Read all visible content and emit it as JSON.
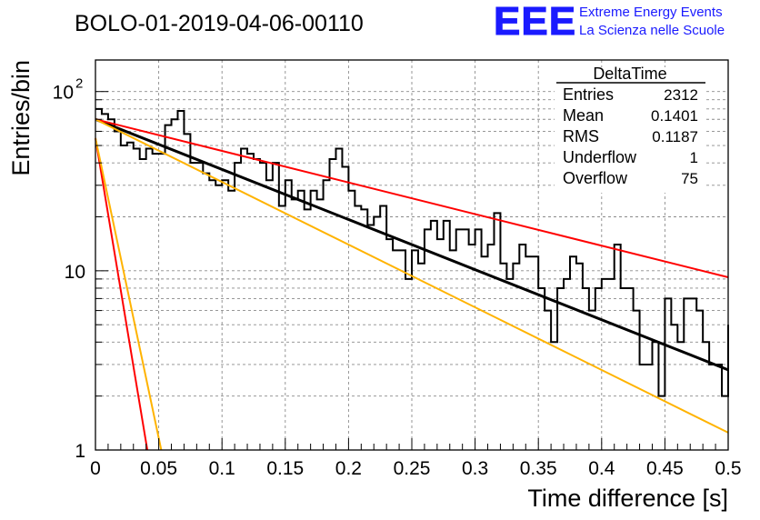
{
  "header": {
    "run_title": "BOLO-01-2019-04-06-00110",
    "logo_text": "EEE",
    "logo_line1": "Extreme Energy Events",
    "logo_line2": "La Scienza nelle Scuole",
    "logo_color": "#1a1aff"
  },
  "stats_box": {
    "title": "DeltaTime",
    "rows": [
      {
        "label": "Entries",
        "value": "2312"
      },
      {
        "label": "Mean",
        "value": "0.1401"
      },
      {
        "label": "RMS",
        "value": "0.1187"
      },
      {
        "label": "Underflow",
        "value": "1"
      },
      {
        "label": "Overflow",
        "value": "75"
      }
    ]
  },
  "chart_data": {
    "type": "line",
    "title": "BOLO-01-2019-04-06-00110",
    "xlabel": "Time difference [s]",
    "ylabel": "Entries/bin",
    "xlim": [
      0,
      0.5
    ],
    "ylim": [
      1,
      150
    ],
    "y_scale": "log",
    "grid": true,
    "x_ticks": [
      "0",
      "0.05",
      "0.1",
      "0.15",
      "0.2",
      "0.25",
      "0.3",
      "0.35",
      "0.4",
      "0.45",
      "0.5"
    ],
    "y_ticks": [
      {
        "value": 1,
        "base": "1",
        "exp": ""
      },
      {
        "value": 10,
        "base": "10",
        "exp": ""
      },
      {
        "value": 100,
        "base": "10",
        "exp": "2"
      }
    ],
    "histogram": {
      "bin_width": 0.005,
      "color": "#000000",
      "values": [
        80,
        75,
        70,
        60,
        50,
        52,
        48,
        42,
        48,
        45,
        45,
        65,
        70,
        78,
        58,
        40,
        40,
        35,
        32,
        30,
        32,
        28,
        40,
        48,
        45,
        42,
        40,
        32,
        40,
        23,
        32,
        25,
        28,
        22,
        28,
        25,
        32,
        42,
        48,
        38,
        28,
        23,
        22,
        18,
        20,
        23,
        15,
        13,
        13,
        9,
        13,
        11,
        17,
        19,
        15,
        19,
        13,
        17,
        17,
        14,
        17,
        12,
        14,
        21,
        11,
        9,
        11,
        14,
        12,
        12,
        8,
        6,
        4,
        8,
        9,
        12,
        11,
        8,
        6,
        8,
        9,
        9,
        14,
        8,
        8,
        6,
        3,
        3,
        4,
        2,
        7,
        5,
        4,
        7,
        7,
        6,
        4,
        3,
        3,
        2,
        5
      ]
    },
    "series": [
      {
        "name": "",
        "kind": "fit",
        "color": "#000000",
        "x": [
          0.0,
          0.5
        ],
        "y": [
          70,
          2.8
        ]
      },
      {
        "name": "",
        "kind": "bound",
        "color": "#ff0000",
        "x": [
          0.0,
          0.5
        ],
        "y": [
          70,
          9.2
        ]
      },
      {
        "name": "",
        "kind": "bound",
        "color": "#ffb300",
        "x": [
          0.0,
          0.5
        ],
        "y": [
          70,
          1.25
        ]
      },
      {
        "name": "",
        "kind": "steep",
        "color": "#ff0000",
        "x": [
          0.0,
          0.041
        ],
        "y": [
          55,
          1.0
        ]
      },
      {
        "name": "",
        "kind": "steep",
        "color": "#ffb300",
        "x": [
          0.0,
          0.052
        ],
        "y": [
          55,
          1.0
        ]
      }
    ]
  }
}
